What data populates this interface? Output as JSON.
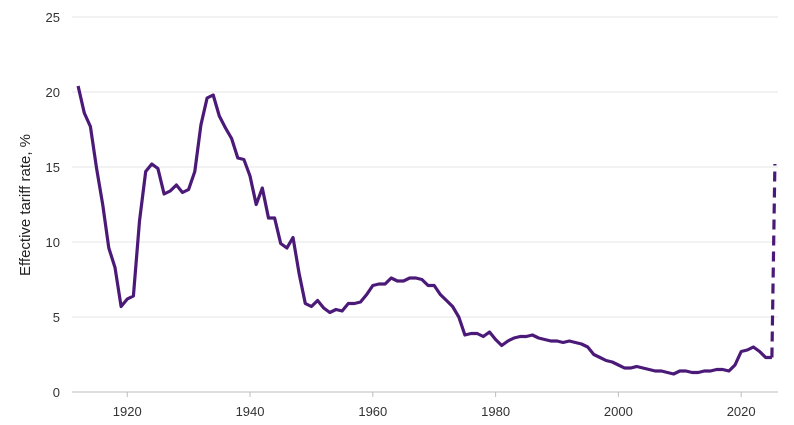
{
  "chart_data": {
    "type": "line",
    "title": "",
    "xlabel": "",
    "ylabel": "Effective tariff rate, %",
    "xlim": [
      1911,
      2026
    ],
    "ylim": [
      0,
      25
    ],
    "x_ticks": [
      1920,
      1940,
      1960,
      1980,
      2000,
      2020
    ],
    "y_ticks": [
      0,
      5,
      10,
      15,
      20,
      25
    ],
    "grid": "horizontal",
    "legend": "none",
    "colors": {
      "line": "#4b1a78",
      "grid": "#e4e4e4",
      "baseline": "#bdbdbd"
    },
    "series": [
      {
        "style": "solid",
        "x": [
          1912,
          1913,
          1914,
          1915,
          1916,
          1917,
          1918,
          1919,
          1920,
          1921,
          1922,
          1923,
          1924,
          1925,
          1926,
          1927,
          1928,
          1929,
          1930,
          1931,
          1932,
          1933,
          1934,
          1935,
          1936,
          1937,
          1938,
          1939,
          1940,
          1941,
          1942,
          1943,
          1944,
          1945,
          1946,
          1947,
          1948,
          1949,
          1950,
          1951,
          1952,
          1953,
          1954,
          1955,
          1956,
          1957,
          1958,
          1959,
          1960,
          1961,
          1962,
          1963,
          1964,
          1965,
          1966,
          1967,
          1968,
          1969,
          1970,
          1971,
          1972,
          1973,
          1974,
          1975,
          1976,
          1977,
          1978,
          1979,
          1980,
          1981,
          1982,
          1983,
          1984,
          1985,
          1986,
          1987,
          1988,
          1989,
          1990,
          1991,
          1992,
          1993,
          1994,
          1995,
          1996,
          1997,
          1998,
          1999,
          2000,
          2001,
          2002,
          2003,
          2004,
          2005,
          2006,
          2007,
          2008,
          2009,
          2010,
          2011,
          2012,
          2013,
          2014,
          2015,
          2016,
          2017,
          2018,
          2019,
          2020,
          2021,
          2022,
          2023,
          2024,
          2025
        ],
        "y": [
          20.4,
          18.6,
          17.7,
          14.9,
          12.5,
          9.6,
          8.3,
          5.7,
          6.2,
          6.4,
          11.4,
          14.7,
          15.2,
          14.9,
          13.2,
          13.4,
          13.8,
          13.3,
          13.5,
          14.7,
          17.8,
          19.6,
          19.8,
          18.4,
          17.6,
          16.9,
          15.6,
          15.5,
          14.4,
          12.5,
          13.6,
          11.6,
          11.6,
          9.9,
          9.6,
          10.3,
          7.9,
          5.9,
          5.7,
          6.1,
          5.6,
          5.3,
          5.5,
          5.4,
          5.9,
          5.9,
          6.0,
          6.5,
          7.1,
          7.2,
          7.2,
          7.6,
          7.4,
          7.4,
          7.6,
          7.6,
          7.5,
          7.1,
          7.1,
          6.5,
          6.1,
          5.7,
          5.0,
          3.8,
          3.9,
          3.9,
          3.7,
          4.0,
          3.5,
          3.1,
          3.4,
          3.6,
          3.7,
          3.7,
          3.8,
          3.6,
          3.5,
          3.4,
          3.4,
          3.3,
          3.4,
          3.3,
          3.2,
          3.0,
          2.5,
          2.3,
          2.1,
          2.0,
          1.8,
          1.6,
          1.6,
          1.7,
          1.6,
          1.5,
          1.4,
          1.4,
          1.3,
          1.2,
          1.4,
          1.4,
          1.3,
          1.3,
          1.4,
          1.4,
          1.5,
          1.5,
          1.4,
          1.8,
          2.7,
          2.8,
          3.0,
          2.7,
          2.3,
          2.3
        ]
      },
      {
        "style": "dashed",
        "x": [
          2025,
          2025.5
        ],
        "y": [
          2.3,
          15.2
        ]
      }
    ]
  }
}
